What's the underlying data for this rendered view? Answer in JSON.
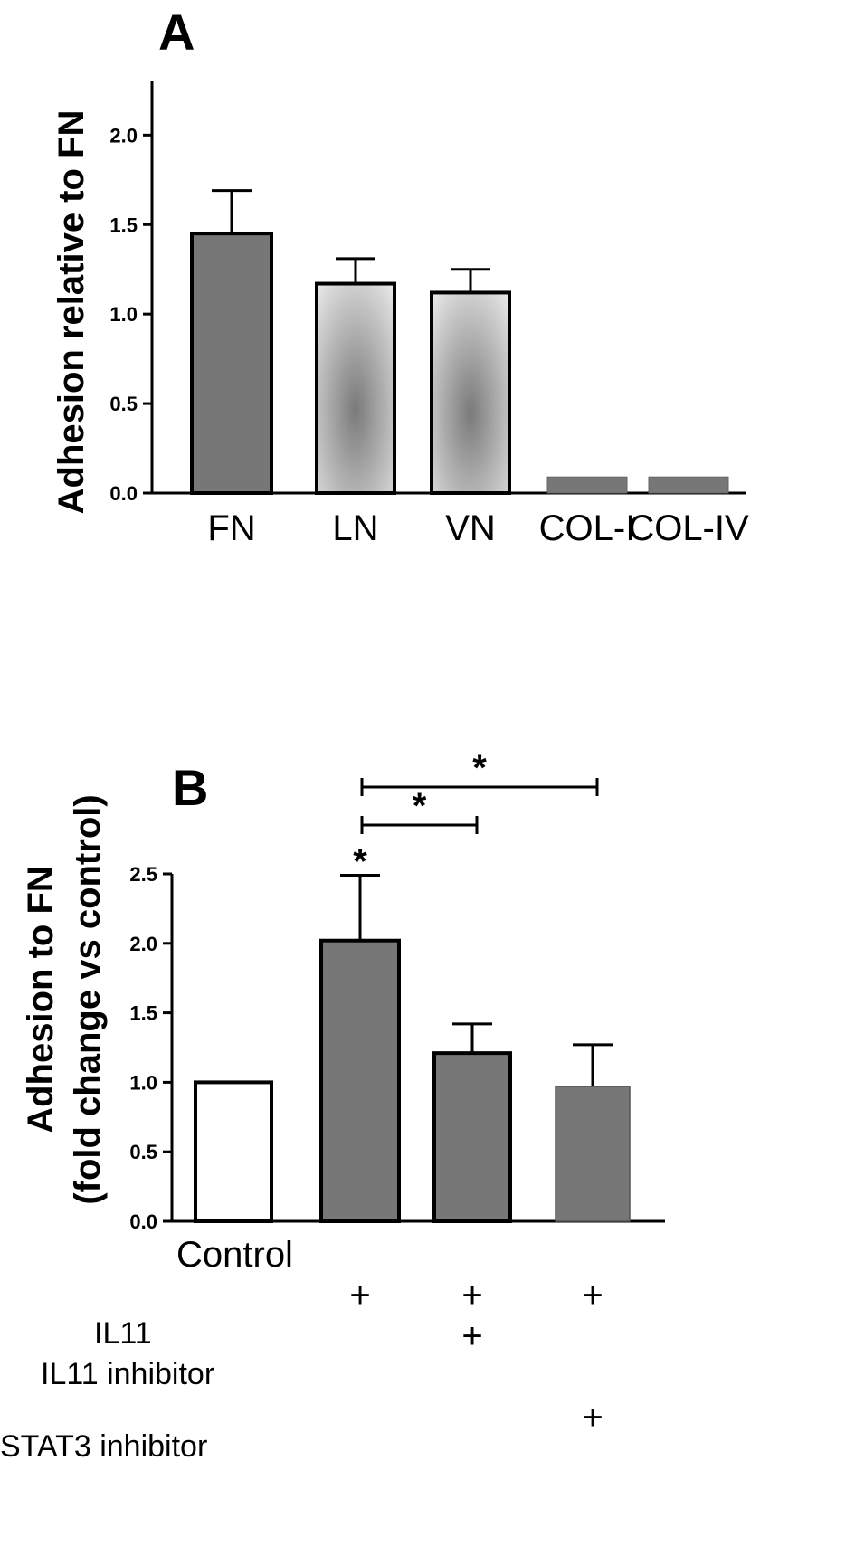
{
  "chart_data": [
    {
      "panel": "A",
      "type": "bar",
      "ylabel": "Adhesion relative to FN",
      "ylim": [
        0,
        2.3
      ],
      "yticks": [
        "0.0",
        "0.5",
        "1.0",
        "1.5",
        "2.0"
      ],
      "categories": [
        "FN",
        "LN",
        "VN",
        "COL-I",
        "COL-IV"
      ],
      "values": [
        1.45,
        1.17,
        1.12,
        0.09,
        0.09
      ],
      "errors": [
        0.24,
        0.14,
        0.13,
        0,
        0
      ],
      "fills": [
        "#777777",
        "radial-light",
        "radial-light",
        "#777777",
        "#777777"
      ]
    },
    {
      "panel": "B",
      "type": "bar",
      "ylabel_line1": "Adhesion to FN",
      "ylabel_line2": "(fold change vs control)",
      "ylim": [
        0,
        2.5
      ],
      "yticks": [
        "0.0",
        "0.5",
        "1.0",
        "1.5",
        "2.0",
        "2.5"
      ],
      "categories": [
        "Control",
        "IL11",
        "IL11 + IL11 inhibitor",
        "IL11 + STAT3 inhibitor"
      ],
      "values": [
        1.0,
        2.02,
        1.21,
        0.97
      ],
      "errors": [
        0,
        0.47,
        0.21,
        0.3
      ],
      "fills": [
        "#ffffff",
        "#777777",
        "#777777",
        "#777777"
      ],
      "control_label": "Control",
      "conditions": {
        "rows": [
          "IL11",
          "IL11 inhibitor",
          "STAT3 inhibitor"
        ],
        "plus_symbol": "+",
        "matrix": [
          [
            false,
            true,
            true,
            true
          ],
          [
            false,
            false,
            true,
            false
          ],
          [
            false,
            false,
            false,
            true
          ]
        ]
      },
      "significance": {
        "symbol": "*",
        "bar_star": 1,
        "brackets": [
          [
            1,
            2
          ],
          [
            1,
            3
          ]
        ]
      }
    }
  ]
}
